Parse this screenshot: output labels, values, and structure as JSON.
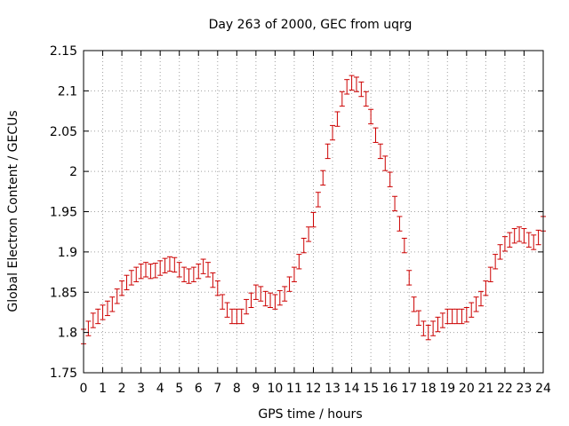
{
  "chart_data": {
    "type": "scatter",
    "title": "Day 263 of 2000, GEC from uqrg",
    "xlabel": "GPS time / hours",
    "ylabel": "Global Electron Content / GECUs",
    "xlim": [
      0,
      24
    ],
    "ylim": [
      1.75,
      2.15
    ],
    "xticks": [
      "0",
      "1",
      "2",
      "3",
      "4",
      "5",
      "6",
      "7",
      "8",
      "9",
      "10",
      "11",
      "12",
      "13",
      "14",
      "15",
      "16",
      "17",
      "18",
      "19",
      "20",
      "21",
      "22",
      "23",
      "24"
    ],
    "yticks": [
      "1.75",
      "1.8",
      "1.85",
      "1.9",
      "1.95",
      "2",
      "2.05",
      "2.1",
      "2.15"
    ],
    "grid": true,
    "error_bar": 0.009,
    "series_color": "#cc0000",
    "x": [
      0,
      0.25,
      0.5,
      0.75,
      1,
      1.25,
      1.5,
      1.75,
      2,
      2.25,
      2.5,
      2.75,
      3,
      3.25,
      3.5,
      3.75,
      4,
      4.25,
      4.5,
      4.75,
      5,
      5.25,
      5.5,
      5.75,
      6,
      6.25,
      6.5,
      6.75,
      7,
      7.25,
      7.5,
      7.75,
      8,
      8.25,
      8.5,
      8.75,
      9,
      9.25,
      9.5,
      9.75,
      10,
      10.25,
      10.5,
      10.75,
      11,
      11.25,
      11.5,
      11.75,
      12,
      12.25,
      12.5,
      12.75,
      13,
      13.25,
      13.5,
      13.75,
      14,
      14.25,
      14.5,
      14.75,
      15,
      15.25,
      15.5,
      15.75,
      16,
      16.25,
      16.5,
      16.75,
      17,
      17.25,
      17.5,
      17.75,
      18,
      18.25,
      18.5,
      18.75,
      19,
      19.25,
      19.5,
      19.75,
      20,
      20.25,
      20.5,
      20.75,
      21,
      21.25,
      21.5,
      21.75,
      22,
      22.25,
      22.5,
      22.75,
      23,
      23.25,
      23.5,
      23.75,
      24
    ],
    "y": [
      1.795,
      1.805,
      1.815,
      1.82,
      1.825,
      1.83,
      1.835,
      1.845,
      1.855,
      1.862,
      1.868,
      1.872,
      1.876,
      1.878,
      1.876,
      1.877,
      1.88,
      1.883,
      1.885,
      1.884,
      1.878,
      1.872,
      1.87,
      1.872,
      1.876,
      1.882,
      1.878,
      1.865,
      1.855,
      1.838,
      1.828,
      1.82,
      1.82,
      1.82,
      1.832,
      1.84,
      1.85,
      1.848,
      1.842,
      1.84,
      1.838,
      1.843,
      1.848,
      1.86,
      1.872,
      1.888,
      1.908,
      1.922,
      1.94,
      1.965,
      1.992,
      2.025,
      2.048,
      2.065,
      2.09,
      2.105,
      2.11,
      2.108,
      2.102,
      2.09,
      2.068,
      2.045,
      2.025,
      2.01,
      1.99,
      1.96,
      1.935,
      1.908,
      1.868,
      1.835,
      1.818,
      1.805,
      1.8,
      1.805,
      1.81,
      1.815,
      1.82,
      1.82,
      1.82,
      1.82,
      1.822,
      1.828,
      1.835,
      1.842,
      1.855,
      1.872,
      1.888,
      1.9,
      1.91,
      1.915,
      1.92,
      1.922,
      1.92,
      1.915,
      1.912,
      1.918,
      1.935
    ]
  }
}
